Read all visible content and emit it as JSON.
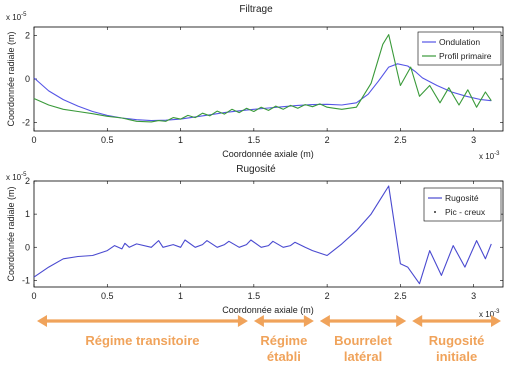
{
  "colors": {
    "ondulation": "#5555e6",
    "profil_primaire": "#3a9a3a",
    "rugosite": "#4a4ad0",
    "regions": "#f0a35b",
    "region_text": "#f0a35b"
  },
  "chart_data": [
    {
      "type": "line",
      "title": "Filtrage",
      "xlabel": "Coordonnée axiale (m)",
      "ylabel": "Coordonnée radiale (m)",
      "x_multiplier": "x 10",
      "x_exponent": "-3",
      "y_multiplier": "x 10",
      "y_exponent": "-5",
      "xlim": [
        0,
        3.2
      ],
      "ylim": [
        -2.4,
        2.4
      ],
      "xticks": [
        0,
        0.5,
        1,
        1.5,
        2,
        2.5,
        3
      ],
      "xtick_labels": [
        "0",
        "0.5",
        "1",
        "1.5",
        "2",
        "2.5",
        "3"
      ],
      "yticks": [
        -2,
        0,
        2
      ],
      "ytick_labels": [
        "-2",
        "0",
        "2"
      ],
      "legend_position": "top-right",
      "series": [
        {
          "name": "Ondulation",
          "x": [
            0,
            0.1,
            0.2,
            0.3,
            0.4,
            0.5,
            0.6,
            0.7,
            0.8,
            0.9,
            1.0,
            1.1,
            1.2,
            1.3,
            1.4,
            1.5,
            1.6,
            1.7,
            1.8,
            1.9,
            2.0,
            2.1,
            2.2,
            2.28,
            2.35,
            2.42,
            2.48,
            2.55,
            2.6,
            2.65,
            2.75,
            2.85,
            2.95,
            3.05,
            3.12
          ],
          "y": [
            0.05,
            -0.55,
            -0.95,
            -1.25,
            -1.5,
            -1.68,
            -1.8,
            -1.88,
            -1.92,
            -1.9,
            -1.85,
            -1.75,
            -1.65,
            -1.55,
            -1.47,
            -1.4,
            -1.34,
            -1.28,
            -1.22,
            -1.18,
            -1.17,
            -1.2,
            -1.1,
            -0.7,
            -0.1,
            0.55,
            0.7,
            0.6,
            0.35,
            0.05,
            -0.3,
            -0.6,
            -0.8,
            -0.95,
            -1.0
          ]
        },
        {
          "name": "Profil primaire",
          "x": [
            0,
            0.1,
            0.2,
            0.3,
            0.4,
            0.5,
            0.6,
            0.7,
            0.8,
            0.85,
            0.9,
            0.95,
            1.0,
            1.05,
            1.1,
            1.15,
            1.2,
            1.25,
            1.3,
            1.35,
            1.4,
            1.45,
            1.5,
            1.55,
            1.6,
            1.65,
            1.7,
            1.75,
            1.8,
            1.85,
            1.9,
            1.95,
            2.0,
            2.05,
            2.1,
            2.2,
            2.3,
            2.38,
            2.42,
            2.5,
            2.57,
            2.63,
            2.7,
            2.77,
            2.83,
            2.9,
            2.96,
            3.02,
            3.08,
            3.12
          ],
          "y": [
            -0.9,
            -1.2,
            -1.4,
            -1.5,
            -1.6,
            -1.72,
            -1.8,
            -1.95,
            -1.98,
            -1.92,
            -1.95,
            -1.78,
            -1.85,
            -1.68,
            -1.78,
            -1.58,
            -1.7,
            -1.48,
            -1.62,
            -1.4,
            -1.55,
            -1.35,
            -1.5,
            -1.3,
            -1.45,
            -1.25,
            -1.4,
            -1.22,
            -1.35,
            -1.18,
            -1.28,
            -1.15,
            -1.3,
            -1.35,
            -1.4,
            -1.3,
            -0.2,
            1.6,
            2.05,
            -0.3,
            0.55,
            -0.8,
            -0.3,
            -1.1,
            -0.4,
            -1.2,
            -0.5,
            -1.3,
            -0.6,
            -1.0
          ]
        }
      ]
    },
    {
      "type": "line",
      "title": "Rugosité",
      "xlabel": "Coordonnée axiale (m)",
      "ylabel": "Coordonnée radiale (m)",
      "x_multiplier": "x 10",
      "x_exponent": "-3",
      "y_multiplier": "x 10",
      "y_exponent": "-5",
      "xlim": [
        0,
        3.2
      ],
      "ylim": [
        -1.2,
        2.0
      ],
      "xticks": [
        0,
        0.5,
        1,
        1.5,
        2,
        2.5,
        3
      ],
      "xtick_labels": [
        "0",
        "0.5",
        "1",
        "1.5",
        "2",
        "2.5",
        "3"
      ],
      "yticks": [
        -1,
        0,
        1,
        2
      ],
      "ytick_labels": [
        "-1",
        "0",
        "1",
        "2"
      ],
      "legend_position": "top-right",
      "series": [
        {
          "name": "Rugosité",
          "x": [
            0,
            0.1,
            0.2,
            0.3,
            0.4,
            0.5,
            0.55,
            0.6,
            0.62,
            0.65,
            0.7,
            0.8,
            0.85,
            0.88,
            0.95,
            1.0,
            1.03,
            1.1,
            1.15,
            1.18,
            1.25,
            1.3,
            1.33,
            1.4,
            1.45,
            1.48,
            1.55,
            1.6,
            1.63,
            1.7,
            1.75,
            1.78,
            1.85,
            1.9,
            2.0,
            2.1,
            2.2,
            2.3,
            2.42,
            2.5,
            2.55,
            2.63,
            2.7,
            2.78,
            2.86,
            2.94,
            3.02,
            3.08,
            3.12
          ],
          "y": [
            -0.9,
            -0.6,
            -0.35,
            -0.28,
            -0.25,
            -0.1,
            0.05,
            -0.05,
            0.12,
            0.0,
            0.1,
            0.0,
            0.2,
            0.0,
            0.08,
            0.0,
            0.22,
            0.0,
            0.08,
            0.2,
            0.0,
            0.08,
            0.18,
            0.0,
            0.08,
            0.22,
            0.0,
            0.05,
            0.18,
            0.0,
            0.05,
            0.15,
            0.0,
            -0.1,
            -0.25,
            0.1,
            0.5,
            1.0,
            1.85,
            -0.5,
            -0.6,
            -1.1,
            -0.1,
            -0.85,
            0.05,
            -0.6,
            0.2,
            -0.35,
            0.1
          ]
        }
      ],
      "legend_extra": [
        {
          "name": "Pic - creux",
          "marker": "dot"
        }
      ]
    }
  ],
  "regions": [
    {
      "label_line1": "Régime transitoire",
      "label_line2": "",
      "x_start": 0,
      "x_end": 1.48
    },
    {
      "label_line1": "Régime",
      "label_line2": "établi",
      "x_start": 1.48,
      "x_end": 1.93
    },
    {
      "label_line1": "Bourrelet",
      "label_line2": "latéral",
      "x_start": 1.93,
      "x_end": 2.56
    },
    {
      "label_line1": "Rugosité",
      "label_line2": "initiale",
      "x_start": 2.56,
      "x_end": 3.35
    }
  ]
}
